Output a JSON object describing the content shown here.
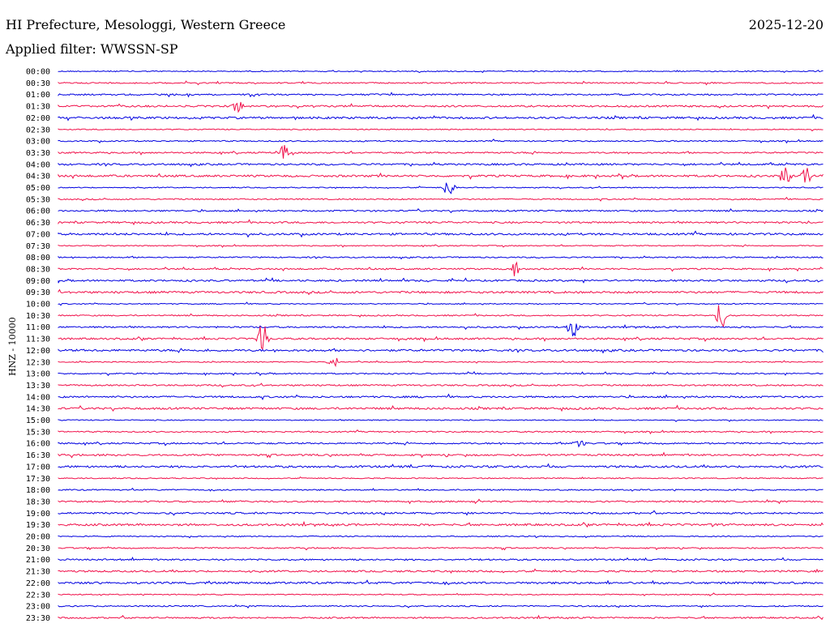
{
  "header": {
    "title": "HI Prefecture, Mesologgi, Western Greece",
    "date": "2025-12-20",
    "filter_label": "Applied filter: WWSSN-SP"
  },
  "colors": {
    "even_trace": "#0000e0",
    "odd_trace": "#f0104a",
    "text": "#000000"
  },
  "chart_data": {
    "type": "line",
    "ylabel": "HNZ - 10000",
    "rows": [
      "00:00",
      "00:30",
      "01:00",
      "01:30",
      "02:00",
      "02:30",
      "03:00",
      "03:30",
      "04:00",
      "04:30",
      "05:00",
      "05:30",
      "06:00",
      "06:30",
      "07:00",
      "07:30",
      "08:00",
      "08:30",
      "09:00",
      "09:30",
      "10:00",
      "10:30",
      "11:00",
      "11:30",
      "12:00",
      "12:30",
      "13:00",
      "13:30",
      "14:00",
      "14:30",
      "15:00",
      "15:30",
      "16:00",
      "16:30",
      "17:00",
      "17:30",
      "18:00",
      "18:30",
      "19:00",
      "19:30",
      "20:00",
      "20:30",
      "21:00",
      "21:30",
      "22:00",
      "22:30",
      "23:00",
      "23:30"
    ],
    "events": [
      {
        "row": "01:30",
        "t_min": 7.0,
        "amp": 0.6
      },
      {
        "row": "03:30",
        "t_min": 8.8,
        "amp": 0.7
      },
      {
        "row": "04:30",
        "t_min": 28.5,
        "amp": 0.8
      },
      {
        "row": "04:30",
        "t_min": 29.3,
        "amp": 0.8
      },
      {
        "row": "05:00",
        "t_min": 15.3,
        "amp": 0.7
      },
      {
        "row": "08:30",
        "t_min": 17.9,
        "amp": 0.6
      },
      {
        "row": "10:30",
        "t_min": 26.0,
        "amp": 1.2
      },
      {
        "row": "11:00",
        "t_min": 20.2,
        "amp": 1.0
      },
      {
        "row": "11:30",
        "t_min": 8.0,
        "amp": 1.4
      },
      {
        "row": "12:30",
        "t_min": 10.8,
        "amp": 0.5
      },
      {
        "row": "16:00",
        "t_min": 20.4,
        "amp": 0.5
      }
    ]
  }
}
